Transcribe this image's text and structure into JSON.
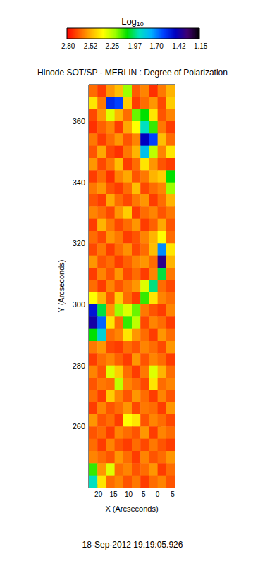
{
  "chart_data": {
    "type": "heatmap",
    "title": "Hinode SOT/SP - MERLIN : Degree of Polarization",
    "subtitle": "18-Sep-2012 19:19:05.926",
    "xlabel": "X (Arcseconds)",
    "ylabel": "Y (Arcseconds)",
    "xlim": [
      -22.8,
      5.7
    ],
    "ylim": [
      240,
      372
    ],
    "xticks": [
      -20,
      -15,
      -10,
      -5,
      0,
      5
    ],
    "yticks": [
      260,
      280,
      300,
      320,
      340,
      360
    ],
    "grid": false,
    "x_edges": [
      -22.8,
      -19.95,
      -17.1,
      -14.25,
      -11.4,
      -8.55,
      -5.7,
      -2.85,
      0,
      2.85,
      5.7
    ],
    "y_edges": [
      372,
      368,
      364,
      360,
      356,
      352,
      348,
      344,
      340,
      336,
      332,
      328,
      324,
      320,
      316,
      312,
      308,
      304,
      300,
      296,
      292,
      288,
      284,
      280,
      276,
      272,
      268,
      264,
      260,
      256,
      252,
      248,
      244,
      240
    ],
    "cells": [
      [
        -2.62,
        -2.7,
        -2.55,
        -2.48,
        -2.2,
        -2.65,
        -2.58,
        -2.72,
        -2.6,
        -2.5
      ],
      [
        -2.4,
        -2.6,
        -1.55,
        -1.6,
        -2.45,
        -2.7,
        -2.62,
        -2.55,
        -2.68,
        -2.45
      ],
      [
        -2.68,
        -2.55,
        -2.3,
        -2.5,
        -2.62,
        -2.15,
        -2.05,
        -2.4,
        -2.66,
        -2.58
      ],
      [
        -2.72,
        -2.64,
        -2.58,
        -2.7,
        -2.52,
        -2.35,
        -1.9,
        -2.1,
        -2.6,
        -2.7
      ],
      [
        -2.6,
        -2.7,
        -2.62,
        -2.55,
        -2.66,
        -2.58,
        -1.45,
        -1.6,
        -2.48,
        -2.62
      ],
      [
        -2.66,
        -2.52,
        -2.68,
        -2.72,
        -2.6,
        -2.5,
        -1.8,
        -2.25,
        -2.58,
        -2.4
      ],
      [
        -2.55,
        -2.68,
        -2.6,
        -2.48,
        -2.7,
        -2.62,
        -2.4,
        -2.55,
        -2.66,
        -2.7
      ],
      [
        -2.7,
        -2.62,
        -2.72,
        -2.58,
        -2.52,
        -2.66,
        -2.6,
        -2.5,
        -2.45,
        -2.05
      ],
      [
        -2.6,
        -2.55,
        -2.66,
        -2.7,
        -2.62,
        -2.48,
        -2.68,
        -2.62,
        -2.58,
        -2.2
      ],
      [
        -2.66,
        -2.7,
        -2.52,
        -2.62,
        -2.68,
        -2.6,
        -2.55,
        -2.7,
        -2.62,
        -2.5
      ],
      [
        -2.58,
        -2.62,
        -2.68,
        -2.55,
        -2.45,
        -2.7,
        -2.62,
        -2.58,
        -2.66,
        -2.6
      ],
      [
        -2.7,
        -2.5,
        -2.6,
        -2.68,
        -2.62,
        -2.55,
        -2.7,
        -2.64,
        -2.52,
        -2.66
      ],
      [
        -2.62,
        -2.68,
        -2.55,
        -2.6,
        -2.7,
        -2.66,
        -2.58,
        -2.5,
        -2.35,
        -2.62
      ],
      [
        -2.68,
        -2.6,
        -2.7,
        -2.62,
        -2.56,
        -2.68,
        -2.62,
        -2.48,
        -1.7,
        -2.4
      ],
      [
        -2.55,
        -2.66,
        -2.62,
        -2.7,
        -2.64,
        -2.58,
        -2.55,
        -2.62,
        -1.35,
        -2.5
      ],
      [
        -2.7,
        -2.58,
        -2.66,
        -2.55,
        -2.68,
        -2.62,
        -2.7,
        -2.58,
        -2.0,
        -2.6
      ],
      [
        -2.62,
        -2.7,
        -2.58,
        -2.66,
        -2.6,
        -2.55,
        -2.3,
        -1.95,
        -2.62,
        -2.68
      ],
      [
        -2.35,
        -2.5,
        -2.66,
        -2.45,
        -2.62,
        -2.7,
        -2.1,
        -2.4,
        -2.58,
        -2.62
      ],
      [
        -1.5,
        -2.0,
        -2.55,
        -2.2,
        -2.3,
        -2.15,
        -2.6,
        -2.66,
        -2.7,
        -2.58
      ],
      [
        -1.4,
        -1.65,
        -2.4,
        -2.62,
        -2.1,
        -2.25,
        -2.68,
        -2.58,
        -2.62,
        -2.7
      ],
      [
        -2.05,
        -1.85,
        -2.62,
        -2.58,
        -2.4,
        -2.55,
        -2.62,
        -2.7,
        -2.55,
        -2.62
      ],
      [
        -2.6,
        -2.55,
        -2.68,
        -2.7,
        -2.62,
        -2.66,
        -2.58,
        -2.62,
        -2.68,
        -2.55
      ],
      [
        -2.7,
        -2.62,
        -2.58,
        -2.64,
        -2.7,
        -2.55,
        -2.66,
        -2.58,
        -2.62,
        -2.7
      ],
      [
        -2.58,
        -2.66,
        -2.3,
        -2.45,
        -2.62,
        -2.7,
        -2.6,
        -2.3,
        -2.5,
        -2.62
      ],
      [
        -2.66,
        -2.6,
        -2.62,
        -2.25,
        -2.58,
        -2.62,
        -2.68,
        -2.4,
        -2.62,
        -2.58
      ],
      [
        -2.62,
        -2.7,
        -2.45,
        -2.58,
        -2.66,
        -2.55,
        -2.62,
        -2.7,
        -2.58,
        -2.66
      ],
      [
        -2.7,
        -2.58,
        -2.66,
        -2.62,
        -2.55,
        -2.68,
        -2.6,
        -2.62,
        -2.7,
        -2.55
      ],
      [
        -2.55,
        -2.66,
        -2.62,
        -2.7,
        -2.35,
        -2.4,
        -2.66,
        -2.58,
        -2.62,
        -2.68
      ],
      [
        -2.66,
        -2.62,
        -2.7,
        -2.58,
        -2.62,
        -2.66,
        -2.55,
        -2.7,
        -2.58,
        -2.62
      ],
      [
        -2.62,
        -2.7,
        -2.58,
        -2.66,
        -2.7,
        -2.62,
        -2.68,
        -2.6,
        -2.66,
        -2.7
      ],
      [
        -2.58,
        -2.62,
        -2.66,
        -2.55,
        -2.62,
        -2.7,
        -2.58,
        -2.66,
        -2.62,
        -2.55
      ],
      [
        -2.1,
        -2.55,
        -2.3,
        -2.62,
        -2.58,
        -2.66,
        -2.62,
        -2.55,
        -2.7,
        -2.62
      ],
      [
        -1.9,
        -2.4,
        -2.62,
        -2.58,
        -2.66,
        -2.6,
        -2.7,
        -2.62,
        -2.58,
        -2.66
      ]
    ],
    "colorbar": {
      "title": "Log10",
      "range": [
        -2.8,
        -1.15
      ],
      "ticks": [
        {
          "value": -2.8,
          "label": "-2.80"
        },
        {
          "value": -2.52,
          "label": "-2.52"
        },
        {
          "value": -2.25,
          "label": "-2.25"
        },
        {
          "value": -1.97,
          "label": "-1.97"
        },
        {
          "value": -1.7,
          "label": "-1.70"
        },
        {
          "value": -1.42,
          "label": "-1.42"
        },
        {
          "value": -1.15,
          "label": "-1.15"
        }
      ]
    }
  }
}
